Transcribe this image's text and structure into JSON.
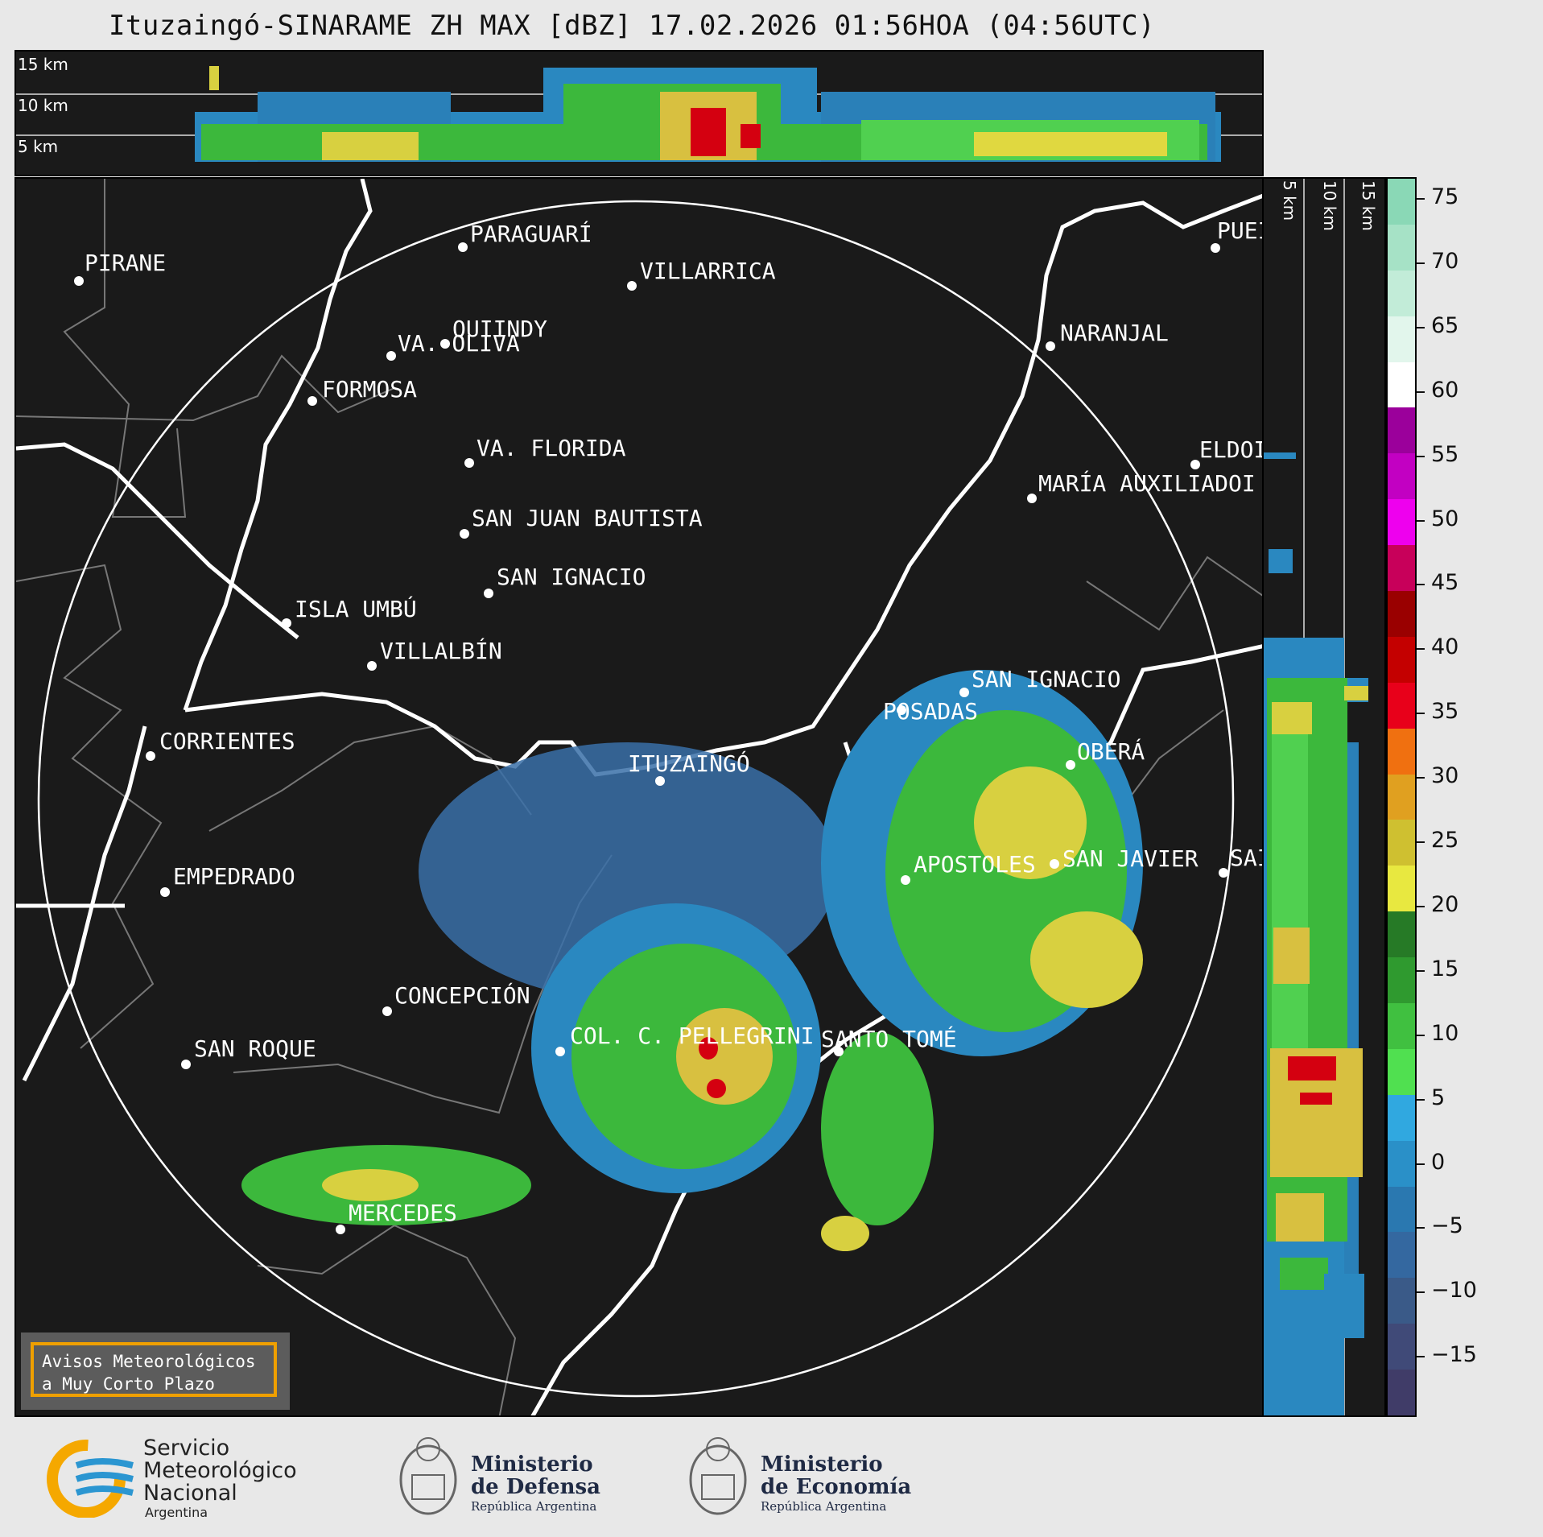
{
  "title": "Ituzaingó-SINARAME ZH MAX [dBZ] 17.02.2026 01:56HOA (04:56UTC)",
  "top_panel": {
    "altitude_labels": [
      "15 km",
      "10 km",
      "5 km"
    ]
  },
  "side_panel": {
    "altitude_labels": [
      "5 km",
      "10 km",
      "15 km"
    ]
  },
  "colorbar": {
    "ticks": [
      "75",
      "70",
      "65",
      "60",
      "55",
      "50",
      "45",
      "40",
      "35",
      "30",
      "25",
      "20",
      "15",
      "10",
      "5",
      "0",
      "−5",
      "−10",
      "−15"
    ],
    "colors": [
      "#8ad8b6",
      "#a6e2c6",
      "#c2ecd8",
      "#e2f6ec",
      "#ffffff",
      "#9b009b",
      "#c200c2",
      "#ee00ee",
      "#c8005a",
      "#9a0000",
      "#c40000",
      "#e8001a",
      "#f07010",
      "#e0a020",
      "#cfc030",
      "#e8e840",
      "#267a26",
      "#2f9a2f",
      "#40c040",
      "#50e050",
      "#30a8e0",
      "#2a90c8",
      "#2a78b0",
      "#3468a0",
      "#3a5a88",
      "#404a78",
      "#403c68"
    ]
  },
  "cities": [
    {
      "name": "PIRANE"
    },
    {
      "name": "PARAGUARÍ"
    },
    {
      "name": "VILLARRICA"
    },
    {
      "name": "QUIINDY"
    },
    {
      "name": "VA. OLIVA"
    },
    {
      "name": "FORMOSA"
    },
    {
      "name": "NARANJAL"
    },
    {
      "name": "PUEI"
    },
    {
      "name": "VA. FLORIDA"
    },
    {
      "name": "ELDOI"
    },
    {
      "name": "MARÍA AUXILIADOI"
    },
    {
      "name": "SAN JUAN BAUTISTA"
    },
    {
      "name": "SAN IGNACIO"
    },
    {
      "name": "ISLA UMBÚ"
    },
    {
      "name": "VILLALBÍN"
    },
    {
      "name": "SAN IGNACIO"
    },
    {
      "name": "POSADAS"
    },
    {
      "name": "CORRIENTES"
    },
    {
      "name": "ITUZAINGÓ"
    },
    {
      "name": "OBERÁ"
    },
    {
      "name": "APOSTOLES"
    },
    {
      "name": "SAN JAVIER"
    },
    {
      "name": "SAI"
    },
    {
      "name": "EMPEDRADO"
    },
    {
      "name": "CONCEPCIÓN"
    },
    {
      "name": "COL. C. PELLEGRINI"
    },
    {
      "name": "SANTO TOMÉ"
    },
    {
      "name": "SAN ROQUE"
    },
    {
      "name": "MERCEDES"
    }
  ],
  "warning": {
    "line1": "Avisos Meteorológicos",
    "line2": "a Muy Corto Plazo"
  },
  "footer": {
    "smn": {
      "line1": "Servicio",
      "line2": "Meteorológico",
      "line3": "Nacional",
      "line4": "Argentina"
    },
    "defensa": {
      "line1": "Ministerio",
      "line2": "de Defensa",
      "line3": "República Argentina"
    },
    "economia": {
      "line1": "Ministerio",
      "line2": "de Economía",
      "line3": "República Argentina"
    }
  }
}
